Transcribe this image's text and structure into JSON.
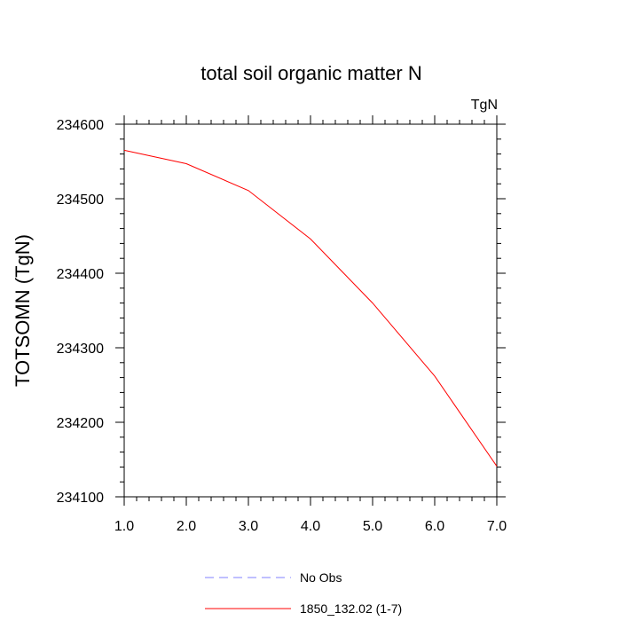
{
  "chart_data": {
    "type": "line",
    "title": "total soil organic matter N",
    "units_label": "TgN",
    "ylabel": "TOTSOMN  (TgN)",
    "xlabel": "",
    "xlim": [
      1.0,
      7.0
    ],
    "ylim": [
      234100,
      234600
    ],
    "x_ticks": [
      "1.0",
      "2.0",
      "3.0",
      "4.0",
      "5.0",
      "6.0",
      "7.0"
    ],
    "y_ticks": [
      "234100",
      "234200",
      "234300",
      "234400",
      "234500",
      "234600"
    ],
    "x": [
      1,
      2,
      3,
      4,
      5,
      6,
      7
    ],
    "series": [
      {
        "name": "1850_132.02 (1-7)",
        "color": "#ff0000",
        "style": "solid",
        "values": [
          234565,
          234547,
          234511,
          234446,
          234360,
          234262,
          234141
        ]
      }
    ],
    "legend": [
      {
        "label": "No Obs",
        "color": "#8080ff",
        "style": "dashed"
      },
      {
        "label": "1850_132.02 (1-7)",
        "color": "#ff0000",
        "style": "solid"
      }
    ],
    "legend_position": "bottom",
    "grid": false
  }
}
